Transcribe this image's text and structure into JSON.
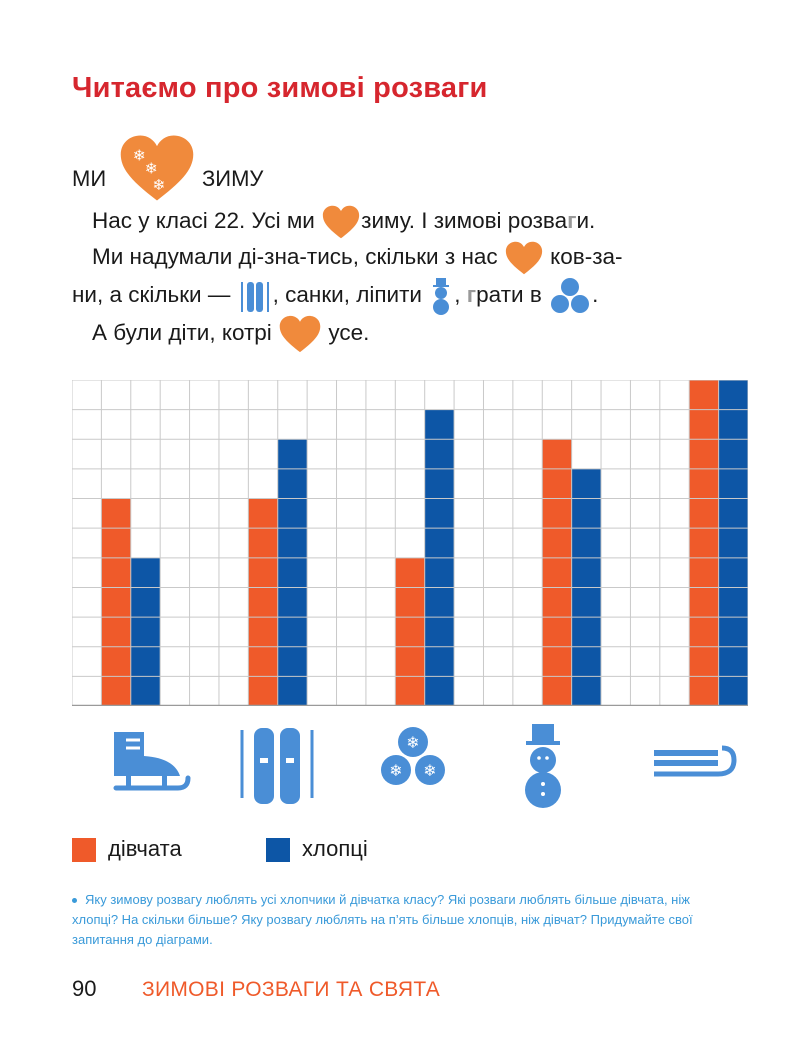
{
  "title": "Читаємо про зимові розваги",
  "heading": {
    "left": "МИ",
    "right": "ЗИМУ"
  },
  "paragraph": {
    "l1_a": "Нас у класі 22. Усі ми",
    "l1_b": "зиму. І зимові розва",
    "l1_g": "г",
    "l1_c": "и.",
    "l2_a": "Ми надумали ді-зна-тись, скільки з нас",
    "l2_b": "ков-за-",
    "l3_a": "ни, а скільки —",
    "l3_b": ", санки, ліпити",
    "l3_c": ",",
    "l3_g": "г",
    "l3_d": "рати в",
    "l3_e": ".",
    "l4_a": "А були діти, котрі",
    "l4_b": "усе."
  },
  "icons": [
    "skate-icon",
    "skis-icon",
    "snowballs-icon",
    "snowman-icon",
    "sled-icon"
  ],
  "chart_data": {
    "type": "bar",
    "categories": [
      "skates",
      "skis",
      "snowballs",
      "snowman",
      "sled"
    ],
    "series": [
      {
        "name": "дівчата",
        "values": [
          7,
          7,
          5,
          9,
          11
        ],
        "color": "#ef5a2a"
      },
      {
        "name": "хлопці",
        "values": [
          5,
          9,
          10,
          8,
          11
        ],
        "color": "#0d56a6"
      }
    ],
    "ylim": [
      0,
      11
    ],
    "grid": true,
    "title": "",
    "xlabel": "",
    "ylabel": ""
  },
  "legend": {
    "girls": "дівчата",
    "boys": "хлопці"
  },
  "task": "Яку зимову розвагу люблять усі хлопчики й дівчатка класу? Які розваги люблять більше дівчата, ніж хлопці? На скільки більше? Яку розвагу люблять на п’ять більше хлопців, ніж дівчат? Придумайте свої запитання до діаграми.",
  "page_number": "90",
  "footer": "ЗИМОВІ РОЗВАГИ ТА СВЯТА",
  "colors": {
    "heart": "#f08a3c",
    "icon": "#4a8ed6",
    "title": "#d6262e"
  }
}
